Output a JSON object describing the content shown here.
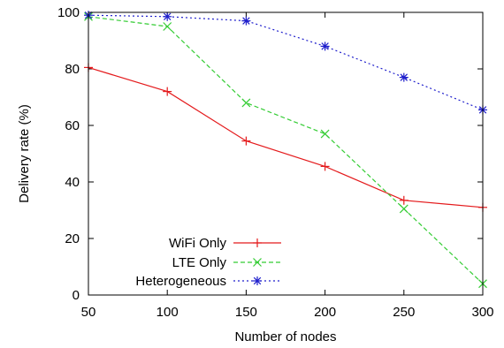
{
  "chart_data": {
    "type": "line",
    "title": "",
    "xlabel": "Number of nodes",
    "ylabel": "Delivery rate (%)",
    "x": [
      50,
      100,
      150,
      200,
      250,
      300
    ],
    "xlim": [
      50,
      300
    ],
    "ylim": [
      0,
      100
    ],
    "xticks": [
      "50",
      "100",
      "150",
      "200",
      "250",
      "300"
    ],
    "yticks": [
      "0",
      "20",
      "40",
      "60",
      "80",
      "100"
    ],
    "grid": false,
    "legend_position": "bottom-left",
    "series": [
      {
        "name": "WiFi Only",
        "values": [
          80.5,
          72,
          54.5,
          45.5,
          33.5,
          31
        ],
        "color": "#e41a1c",
        "marker": "plus",
        "dash": "solid"
      },
      {
        "name": "LTE Only",
        "values": [
          98.5,
          95,
          68,
          57,
          30.5,
          4
        ],
        "color": "#33cc33",
        "marker": "cross",
        "dash": "dashed"
      },
      {
        "name": "Heterogeneous",
        "values": [
          99,
          98.5,
          97,
          88,
          77,
          65.5
        ],
        "color": "#1f1fcc",
        "marker": "star",
        "dash": "dotted"
      }
    ]
  }
}
